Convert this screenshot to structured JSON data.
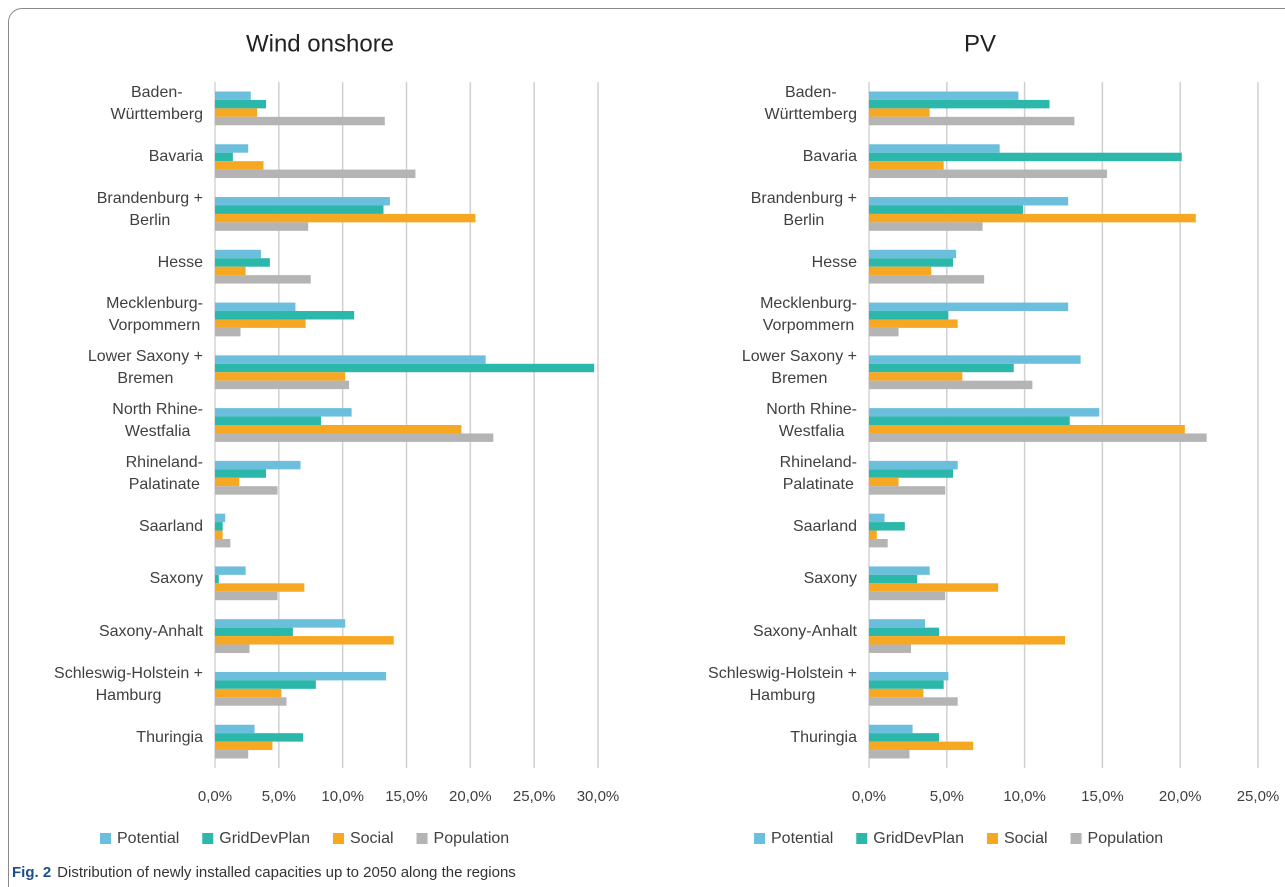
{
  "chart_data": [
    {
      "type": "bar",
      "title": "Wind onshore",
      "categories": [
        "Baden-\nWürttemberg",
        "Bavaria",
        "Brandenburg +\nBerlin",
        "Hesse",
        "Mecklenburg-\nVorpommern",
        "Lower Saxony +\nBremen",
        "North Rhine-\nWestfalia",
        "Rhineland-\nPalatinate",
        "Saarland",
        "Saxony",
        "Saxony-Anhalt",
        "Schleswig-Holstein +\nHamburg",
        "Thuringia"
      ],
      "series": [
        {
          "name": "Potential",
          "color": "#6cbfdc",
          "values": [
            2.8,
            2.6,
            13.7,
            3.6,
            6.3,
            21.2,
            10.7,
            6.7,
            0.8,
            2.4,
            10.2,
            13.4,
            3.1
          ]
        },
        {
          "name": "GridDevPlan",
          "color": "#2bb7a9",
          "values": [
            4.0,
            1.4,
            13.2,
            4.3,
            10.9,
            29.7,
            8.3,
            4.0,
            0.6,
            0.3,
            6.1,
            7.9,
            6.9
          ]
        },
        {
          "name": "Social",
          "color": "#f7a823",
          "values": [
            3.3,
            3.8,
            20.4,
            2.4,
            7.1,
            10.2,
            19.3,
            1.9,
            0.6,
            7.0,
            14.0,
            5.2,
            4.5
          ]
        },
        {
          "name": "Population",
          "color": "#b4b4b4",
          "values": [
            13.3,
            15.7,
            7.3,
            7.5,
            2.0,
            10.5,
            21.8,
            4.9,
            1.2,
            4.9,
            2.7,
            5.6,
            2.6
          ]
        }
      ],
      "xlim": [
        0,
        30
      ],
      "xticks": [
        {
          "value": 0,
          "label": "0,0%"
        },
        {
          "value": 5,
          "label": "5,0%"
        },
        {
          "value": 10,
          "label": "10,0%"
        },
        {
          "value": 15,
          "label": "15,0%"
        },
        {
          "value": 20,
          "label": "20,0%"
        },
        {
          "value": 25,
          "label": "25,0%"
        },
        {
          "value": 30,
          "label": "30,0%"
        }
      ],
      "grid": true,
      "legend": "bottom"
    },
    {
      "type": "bar",
      "title": "PV",
      "categories": [
        "Baden-\nWürttemberg",
        "Bavaria",
        "Brandenburg +\nBerlin",
        "Hesse",
        "Mecklenburg-\nVorpommern",
        "Lower Saxony +\nBremen",
        "North Rhine-\nWestfalia",
        "Rhineland-\nPalatinate",
        "Saarland",
        "Saxony",
        "Saxony-Anhalt",
        "Schleswig-Holstein +\nHamburg",
        "Thuringia"
      ],
      "series": [
        {
          "name": "Potential",
          "color": "#6cbfdc",
          "values": [
            9.6,
            8.4,
            12.8,
            5.6,
            12.8,
            13.6,
            14.8,
            5.7,
            1.0,
            3.9,
            3.6,
            5.1,
            2.8
          ]
        },
        {
          "name": "GridDevPlan",
          "color": "#2bb7a9",
          "values": [
            11.6,
            20.1,
            9.9,
            5.4,
            5.1,
            9.3,
            12.9,
            5.4,
            2.3,
            3.1,
            4.5,
            4.8,
            4.5
          ]
        },
        {
          "name": "Social",
          "color": "#f7a823",
          "values": [
            3.9,
            4.8,
            21.0,
            4.0,
            5.7,
            6.0,
            20.3,
            1.9,
            0.5,
            8.3,
            12.6,
            3.5,
            6.7
          ]
        },
        {
          "name": "Population",
          "color": "#b4b4b4",
          "values": [
            13.2,
            15.3,
            7.3,
            7.4,
            1.9,
            10.5,
            21.7,
            4.9,
            1.2,
            4.9,
            2.7,
            5.7,
            2.6
          ]
        }
      ],
      "xlim": [
        0,
        25
      ],
      "xticks": [
        {
          "value": 0,
          "label": "0,0%"
        },
        {
          "value": 5,
          "label": "5,0%"
        },
        {
          "value": 10,
          "label": "10,0%"
        },
        {
          "value": 15,
          "label": "15,0%"
        },
        {
          "value": 20,
          "label": "20,0%"
        },
        {
          "value": 25,
          "label": "25,0%"
        }
      ],
      "grid": true,
      "legend": "bottom"
    }
  ],
  "caption": {
    "label": "Fig. 2",
    "text": "Distribution of newly installed capacities up to 2050 along the regions"
  }
}
